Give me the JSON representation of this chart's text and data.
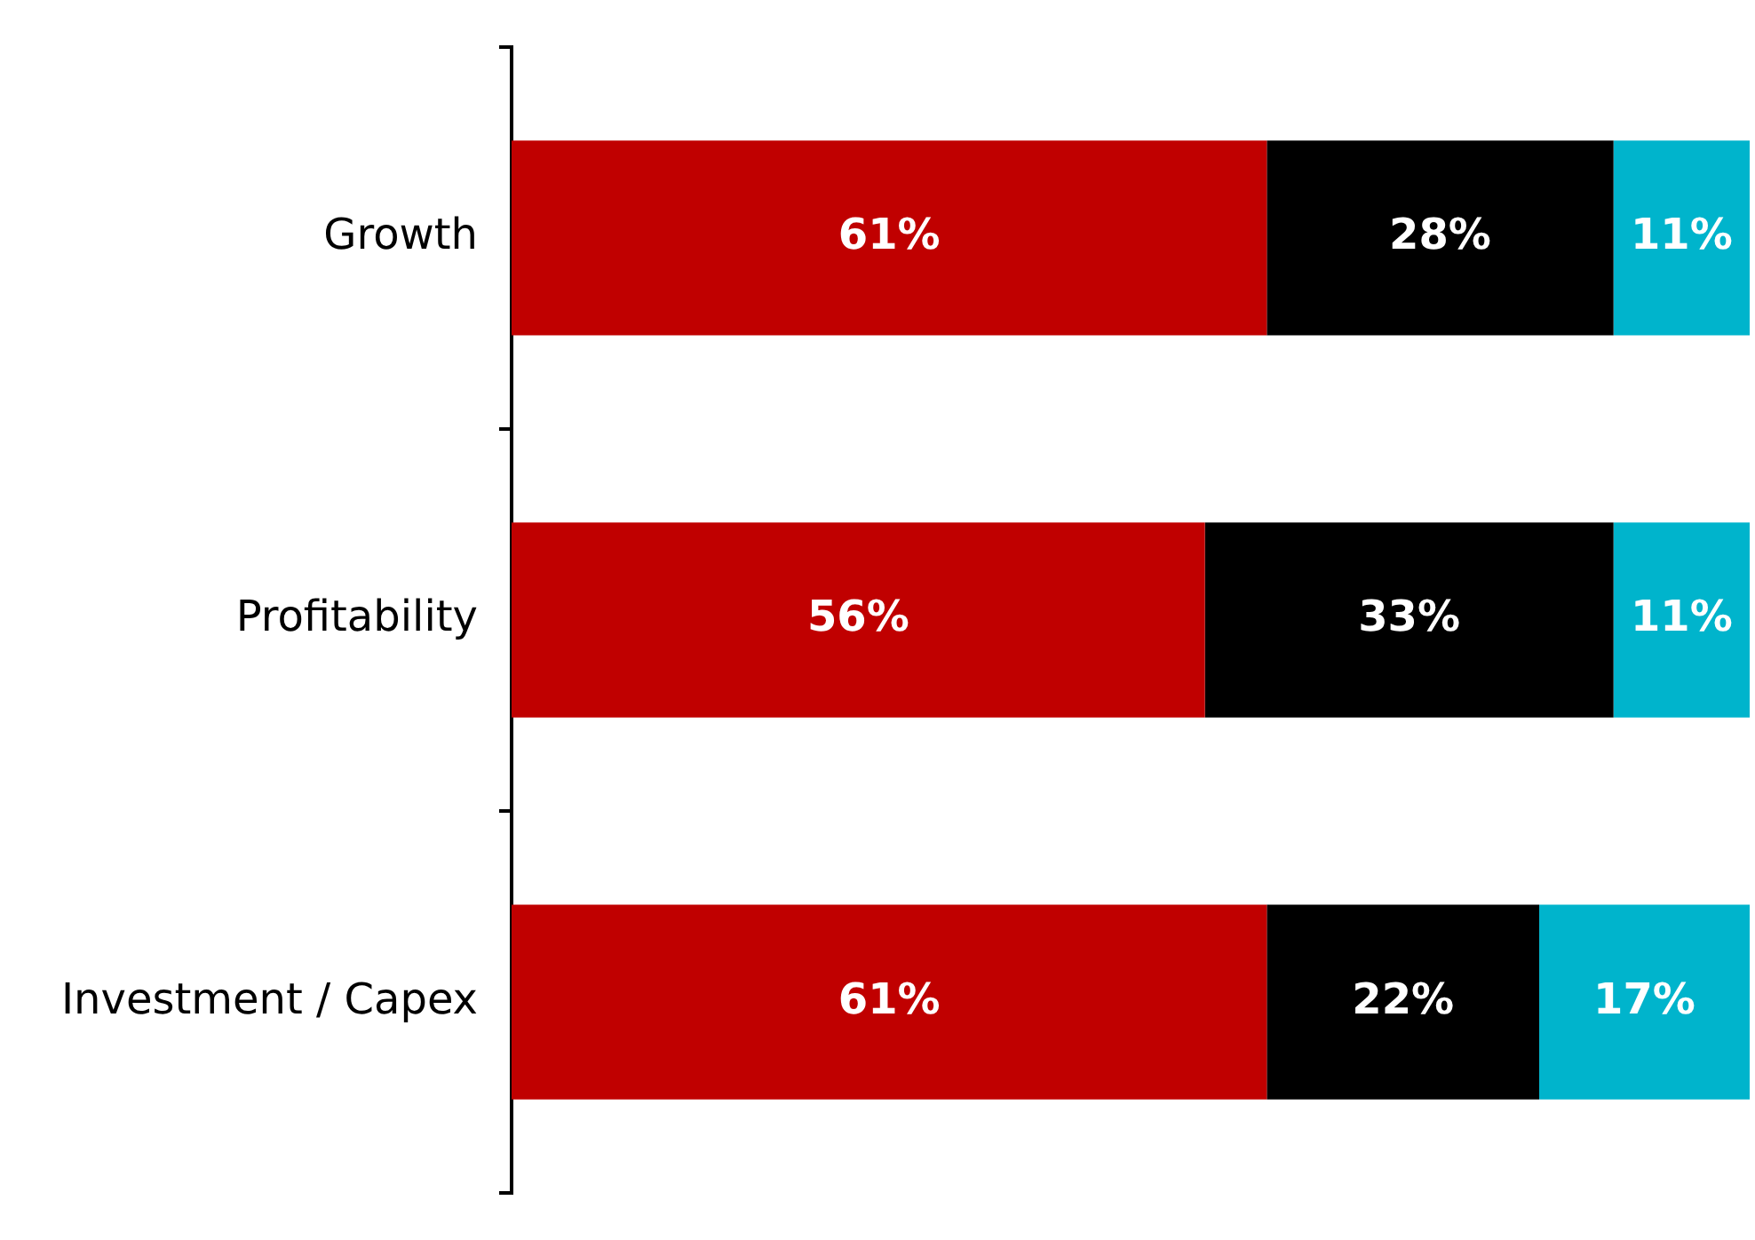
{
  "chart_data": {
    "type": "bar",
    "orientation": "horizontal",
    "stacked": true,
    "categories": [
      "Growth",
      "Profitability",
      "Investment / Capex"
    ],
    "xlim": [
      0,
      100
    ],
    "tick_labels": "y",
    "series": [
      {
        "color": "#c00000",
        "values": [
          61,
          56,
          61
        ],
        "value_labels": [
          "61%",
          "56%",
          "61%"
        ]
      },
      {
        "color": "#000000",
        "values": [
          28,
          33,
          22
        ],
        "value_labels": [
          "28%",
          "33%",
          "22%"
        ]
      },
      {
        "color": "#00b4cc",
        "values": [
          11,
          11,
          17
        ],
        "value_labels": [
          "11%",
          "11%",
          "17%"
        ]
      }
    ]
  }
}
